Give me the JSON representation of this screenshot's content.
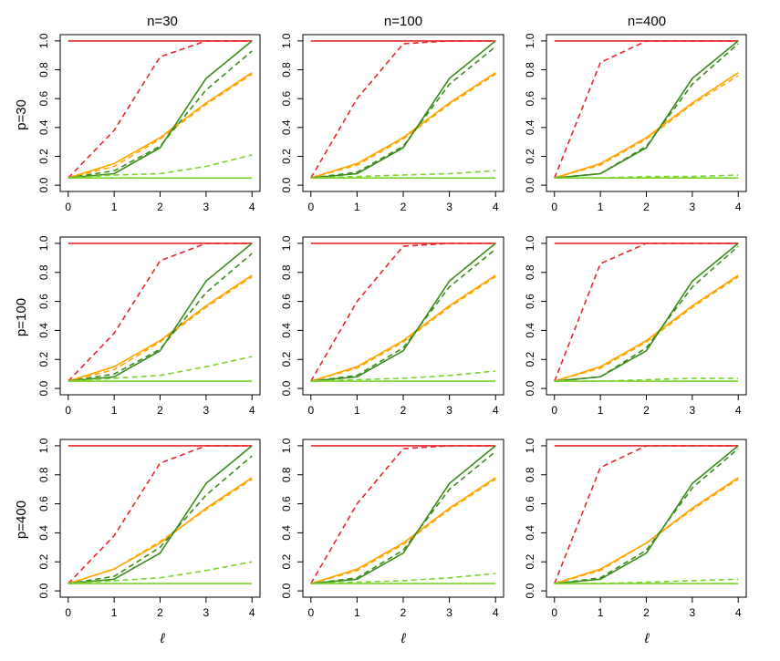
{
  "figure": {
    "col_headers": [
      "n=30",
      "n=100",
      "n=400"
    ],
    "row_headers": [
      "p=30",
      "p=100",
      "p=400"
    ],
    "xlabel": "ℓ"
  },
  "colors": {
    "red": "#e8262a",
    "orange": "#ffa500",
    "darkgreen": "#3c8c1e",
    "lightgreen": "#7cd32a"
  },
  "chart_data": [
    {
      "type": "line",
      "row_header": "p=30",
      "col_header": "n=30",
      "x": [
        0,
        1,
        2,
        3,
        4
      ],
      "xlabel": "",
      "ylabel": "",
      "xlim": [
        0,
        4
      ],
      "ylim": [
        0,
        1
      ],
      "xticks": [
        "0",
        "1",
        "2",
        "3",
        "4"
      ],
      "yticks": [
        "0.0",
        "0.2",
        "0.4",
        "0.6",
        "0.8",
        "1.0"
      ],
      "series": [
        {
          "color": "red",
          "style": "solid",
          "values": [
            1.0,
            1.0,
            1.0,
            1.0,
            1.0
          ]
        },
        {
          "color": "red",
          "style": "dashed",
          "values": [
            0.05,
            0.38,
            0.89,
            1.0,
            1.0
          ]
        },
        {
          "color": "orange",
          "style": "solid",
          "values": [
            0.05,
            0.15,
            0.33,
            0.57,
            0.78
          ]
        },
        {
          "color": "orange",
          "style": "dashed",
          "values": [
            0.05,
            0.13,
            0.32,
            0.56,
            0.77
          ]
        },
        {
          "color": "darkgreen",
          "style": "solid",
          "values": [
            0.05,
            0.08,
            0.26,
            0.74,
            1.0
          ]
        },
        {
          "color": "darkgreen",
          "style": "dashed",
          "values": [
            0.05,
            0.1,
            0.27,
            0.66,
            0.93
          ]
        },
        {
          "color": "lightgreen",
          "style": "solid",
          "values": [
            0.05,
            0.05,
            0.05,
            0.05,
            0.05
          ]
        },
        {
          "color": "lightgreen",
          "style": "dashed",
          "values": [
            0.05,
            0.07,
            0.08,
            0.13,
            0.21
          ]
        }
      ]
    },
    {
      "type": "line",
      "row_header": "p=30",
      "col_header": "n=100",
      "x": [
        0,
        1,
        2,
        3,
        4
      ],
      "xlabel": "",
      "ylabel": "",
      "xlim": [
        0,
        4
      ],
      "ylim": [
        0,
        1
      ],
      "xticks": [
        "0",
        "1",
        "2",
        "3",
        "4"
      ],
      "yticks": [
        "0.0",
        "0.2",
        "0.4",
        "0.6",
        "0.8",
        "1.0"
      ],
      "series": [
        {
          "color": "red",
          "style": "solid",
          "values": [
            1.0,
            1.0,
            1.0,
            1.0,
            1.0
          ]
        },
        {
          "color": "red",
          "style": "dashed",
          "values": [
            0.05,
            0.6,
            0.98,
            1.0,
            1.0
          ]
        },
        {
          "color": "orange",
          "style": "solid",
          "values": [
            0.05,
            0.15,
            0.33,
            0.57,
            0.78
          ]
        },
        {
          "color": "orange",
          "style": "dashed",
          "values": [
            0.05,
            0.14,
            0.32,
            0.56,
            0.77
          ]
        },
        {
          "color": "darkgreen",
          "style": "solid",
          "values": [
            0.05,
            0.08,
            0.26,
            0.74,
            1.0
          ]
        },
        {
          "color": "darkgreen",
          "style": "dashed",
          "values": [
            0.05,
            0.09,
            0.27,
            0.7,
            0.96
          ]
        },
        {
          "color": "lightgreen",
          "style": "solid",
          "values": [
            0.05,
            0.05,
            0.05,
            0.05,
            0.05
          ]
        },
        {
          "color": "lightgreen",
          "style": "dashed",
          "values": [
            0.05,
            0.06,
            0.07,
            0.08,
            0.1
          ]
        }
      ]
    },
    {
      "type": "line",
      "row_header": "p=30",
      "col_header": "n=400",
      "x": [
        0,
        1,
        2,
        3,
        4
      ],
      "xlabel": "",
      "ylabel": "",
      "xlim": [
        0,
        4
      ],
      "ylim": [
        0,
        1
      ],
      "xticks": [
        "0",
        "1",
        "2",
        "3",
        "4"
      ],
      "yticks": [
        "0.0",
        "0.2",
        "0.4",
        "0.6",
        "0.8",
        "1.0"
      ],
      "series": [
        {
          "color": "red",
          "style": "solid",
          "values": [
            1.0,
            1.0,
            1.0,
            1.0,
            1.0
          ]
        },
        {
          "color": "red",
          "style": "dashed",
          "values": [
            0.05,
            0.85,
            1.0,
            1.0,
            1.0
          ]
        },
        {
          "color": "orange",
          "style": "solid",
          "values": [
            0.05,
            0.15,
            0.33,
            0.57,
            0.78
          ]
        },
        {
          "color": "orange",
          "style": "dashed",
          "values": [
            0.05,
            0.14,
            0.32,
            0.56,
            0.76
          ]
        },
        {
          "color": "darkgreen",
          "style": "solid",
          "values": [
            0.05,
            0.08,
            0.26,
            0.74,
            1.0
          ]
        },
        {
          "color": "darkgreen",
          "style": "dashed",
          "values": [
            0.05,
            0.08,
            0.27,
            0.7,
            0.98
          ]
        },
        {
          "color": "lightgreen",
          "style": "solid",
          "values": [
            0.05,
            0.05,
            0.05,
            0.05,
            0.05
          ]
        },
        {
          "color": "lightgreen",
          "style": "dashed",
          "values": [
            0.05,
            0.05,
            0.06,
            0.06,
            0.07
          ]
        }
      ]
    },
    {
      "type": "line",
      "row_header": "p=100",
      "col_header": "n=30",
      "x": [
        0,
        1,
        2,
        3,
        4
      ],
      "xlabel": "",
      "ylabel": "",
      "xlim": [
        0,
        4
      ],
      "ylim": [
        0,
        1
      ],
      "xticks": [
        "0",
        "1",
        "2",
        "3",
        "4"
      ],
      "yticks": [
        "0.0",
        "0.2",
        "0.4",
        "0.6",
        "0.8",
        "1.0"
      ],
      "series": [
        {
          "color": "red",
          "style": "solid",
          "values": [
            1.0,
            1.0,
            1.0,
            1.0,
            1.0
          ]
        },
        {
          "color": "red",
          "style": "dashed",
          "values": [
            0.05,
            0.38,
            0.88,
            1.0,
            1.0
          ]
        },
        {
          "color": "orange",
          "style": "solid",
          "values": [
            0.05,
            0.15,
            0.33,
            0.57,
            0.78
          ]
        },
        {
          "color": "orange",
          "style": "dashed",
          "values": [
            0.05,
            0.13,
            0.32,
            0.56,
            0.77
          ]
        },
        {
          "color": "darkgreen",
          "style": "solid",
          "values": [
            0.05,
            0.08,
            0.26,
            0.74,
            1.0
          ]
        },
        {
          "color": "darkgreen",
          "style": "dashed",
          "values": [
            0.05,
            0.1,
            0.27,
            0.66,
            0.93
          ]
        },
        {
          "color": "lightgreen",
          "style": "solid",
          "values": [
            0.05,
            0.05,
            0.05,
            0.05,
            0.05
          ]
        },
        {
          "color": "lightgreen",
          "style": "dashed",
          "values": [
            0.05,
            0.07,
            0.09,
            0.15,
            0.22
          ]
        }
      ]
    },
    {
      "type": "line",
      "row_header": "p=100",
      "col_header": "n=100",
      "x": [
        0,
        1,
        2,
        3,
        4
      ],
      "xlabel": "",
      "ylabel": "",
      "xlim": [
        0,
        4
      ],
      "ylim": [
        0,
        1
      ],
      "xticks": [
        "0",
        "1",
        "2",
        "3",
        "4"
      ],
      "yticks": [
        "0.0",
        "0.2",
        "0.4",
        "0.6",
        "0.8",
        "1.0"
      ],
      "series": [
        {
          "color": "red",
          "style": "solid",
          "values": [
            1.0,
            1.0,
            1.0,
            1.0,
            1.0
          ]
        },
        {
          "color": "red",
          "style": "dashed",
          "values": [
            0.05,
            0.6,
            0.98,
            1.0,
            1.0
          ]
        },
        {
          "color": "orange",
          "style": "solid",
          "values": [
            0.05,
            0.15,
            0.33,
            0.57,
            0.78
          ]
        },
        {
          "color": "orange",
          "style": "dashed",
          "values": [
            0.05,
            0.14,
            0.32,
            0.56,
            0.77
          ]
        },
        {
          "color": "darkgreen",
          "style": "solid",
          "values": [
            0.05,
            0.08,
            0.26,
            0.74,
            1.0
          ]
        },
        {
          "color": "darkgreen",
          "style": "dashed",
          "values": [
            0.05,
            0.09,
            0.28,
            0.7,
            0.96
          ]
        },
        {
          "color": "lightgreen",
          "style": "solid",
          "values": [
            0.05,
            0.05,
            0.05,
            0.05,
            0.05
          ]
        },
        {
          "color": "lightgreen",
          "style": "dashed",
          "values": [
            0.05,
            0.06,
            0.07,
            0.09,
            0.12
          ]
        }
      ]
    },
    {
      "type": "line",
      "row_header": "p=100",
      "col_header": "n=400",
      "x": [
        0,
        1,
        2,
        3,
        4
      ],
      "xlabel": "",
      "ylabel": "",
      "xlim": [
        0,
        4
      ],
      "ylim": [
        0,
        1
      ],
      "xticks": [
        "0",
        "1",
        "2",
        "3",
        "4"
      ],
      "yticks": [
        "0.0",
        "0.2",
        "0.4",
        "0.6",
        "0.8",
        "1.0"
      ],
      "series": [
        {
          "color": "red",
          "style": "solid",
          "values": [
            1.0,
            1.0,
            1.0,
            1.0,
            1.0
          ]
        },
        {
          "color": "red",
          "style": "dashed",
          "values": [
            0.05,
            0.86,
            1.0,
            1.0,
            1.0
          ]
        },
        {
          "color": "orange",
          "style": "solid",
          "values": [
            0.05,
            0.15,
            0.33,
            0.57,
            0.78
          ]
        },
        {
          "color": "orange",
          "style": "dashed",
          "values": [
            0.05,
            0.14,
            0.32,
            0.56,
            0.77
          ]
        },
        {
          "color": "darkgreen",
          "style": "solid",
          "values": [
            0.05,
            0.08,
            0.26,
            0.74,
            1.0
          ]
        },
        {
          "color": "darkgreen",
          "style": "dashed",
          "values": [
            0.05,
            0.08,
            0.28,
            0.7,
            0.98
          ]
        },
        {
          "color": "lightgreen",
          "style": "solid",
          "values": [
            0.05,
            0.05,
            0.05,
            0.05,
            0.05
          ]
        },
        {
          "color": "lightgreen",
          "style": "dashed",
          "values": [
            0.05,
            0.05,
            0.06,
            0.07,
            0.07
          ]
        }
      ]
    },
    {
      "type": "line",
      "row_header": "p=400",
      "col_header": "n=30",
      "x": [
        0,
        1,
        2,
        3,
        4
      ],
      "xlabel": "ℓ",
      "ylabel": "",
      "xlim": [
        0,
        4
      ],
      "ylim": [
        0,
        1
      ],
      "xticks": [
        "0",
        "1",
        "2",
        "3",
        "4"
      ],
      "yticks": [
        "0.0",
        "0.2",
        "0.4",
        "0.6",
        "0.8",
        "1.0"
      ],
      "series": [
        {
          "color": "red",
          "style": "solid",
          "values": [
            1.0,
            1.0,
            1.0,
            1.0,
            1.0
          ]
        },
        {
          "color": "red",
          "style": "dashed",
          "values": [
            0.05,
            0.38,
            0.88,
            1.0,
            1.0
          ]
        },
        {
          "color": "orange",
          "style": "solid",
          "values": [
            0.05,
            0.15,
            0.33,
            0.57,
            0.78
          ]
        },
        {
          "color": "orange",
          "style": "dashed",
          "values": [
            0.05,
            0.15,
            0.34,
            0.56,
            0.77
          ]
        },
        {
          "color": "darkgreen",
          "style": "solid",
          "values": [
            0.05,
            0.08,
            0.26,
            0.74,
            1.0
          ]
        },
        {
          "color": "darkgreen",
          "style": "dashed",
          "values": [
            0.05,
            0.1,
            0.3,
            0.66,
            0.93
          ]
        },
        {
          "color": "lightgreen",
          "style": "solid",
          "values": [
            0.05,
            0.05,
            0.05,
            0.05,
            0.05
          ]
        },
        {
          "color": "lightgreen",
          "style": "dashed",
          "values": [
            0.05,
            0.07,
            0.09,
            0.14,
            0.2
          ]
        }
      ]
    },
    {
      "type": "line",
      "row_header": "p=400",
      "col_header": "n=100",
      "x": [
        0,
        1,
        2,
        3,
        4
      ],
      "xlabel": "ℓ",
      "ylabel": "",
      "xlim": [
        0,
        4
      ],
      "ylim": [
        0,
        1
      ],
      "xticks": [
        "0",
        "1",
        "2",
        "3",
        "4"
      ],
      "yticks": [
        "0.0",
        "0.2",
        "0.4",
        "0.6",
        "0.8",
        "1.0"
      ],
      "series": [
        {
          "color": "red",
          "style": "solid",
          "values": [
            1.0,
            1.0,
            1.0,
            1.0,
            1.0
          ]
        },
        {
          "color": "red",
          "style": "dashed",
          "values": [
            0.05,
            0.6,
            0.98,
            1.0,
            1.0
          ]
        },
        {
          "color": "orange",
          "style": "solid",
          "values": [
            0.05,
            0.15,
            0.33,
            0.57,
            0.78
          ]
        },
        {
          "color": "orange",
          "style": "dashed",
          "values": [
            0.05,
            0.14,
            0.32,
            0.56,
            0.77
          ]
        },
        {
          "color": "darkgreen",
          "style": "solid",
          "values": [
            0.05,
            0.08,
            0.26,
            0.74,
            1.0
          ]
        },
        {
          "color": "darkgreen",
          "style": "dashed",
          "values": [
            0.05,
            0.09,
            0.28,
            0.7,
            0.96
          ]
        },
        {
          "color": "lightgreen",
          "style": "solid",
          "values": [
            0.05,
            0.05,
            0.05,
            0.05,
            0.05
          ]
        },
        {
          "color": "lightgreen",
          "style": "dashed",
          "values": [
            0.05,
            0.06,
            0.07,
            0.09,
            0.12
          ]
        }
      ]
    },
    {
      "type": "line",
      "row_header": "p=400",
      "col_header": "n=400",
      "x": [
        0,
        1,
        2,
        3,
        4
      ],
      "xlabel": "ℓ",
      "ylabel": "",
      "xlim": [
        0,
        4
      ],
      "ylim": [
        0,
        1
      ],
      "xticks": [
        "0",
        "1",
        "2",
        "3",
        "4"
      ],
      "yticks": [
        "0.0",
        "0.2",
        "0.4",
        "0.6",
        "0.8",
        "1.0"
      ],
      "series": [
        {
          "color": "red",
          "style": "solid",
          "values": [
            1.0,
            1.0,
            1.0,
            1.0,
            1.0
          ]
        },
        {
          "color": "red",
          "style": "dashed",
          "values": [
            0.05,
            0.85,
            1.0,
            1.0,
            1.0
          ]
        },
        {
          "color": "orange",
          "style": "solid",
          "values": [
            0.05,
            0.15,
            0.33,
            0.57,
            0.78
          ]
        },
        {
          "color": "orange",
          "style": "dashed",
          "values": [
            0.05,
            0.14,
            0.33,
            0.56,
            0.77
          ]
        },
        {
          "color": "darkgreen",
          "style": "solid",
          "values": [
            0.05,
            0.08,
            0.26,
            0.74,
            1.0
          ]
        },
        {
          "color": "darkgreen",
          "style": "dashed",
          "values": [
            0.05,
            0.09,
            0.28,
            0.71,
            0.98
          ]
        },
        {
          "color": "lightgreen",
          "style": "solid",
          "values": [
            0.05,
            0.05,
            0.05,
            0.05,
            0.05
          ]
        },
        {
          "color": "lightgreen",
          "style": "dashed",
          "values": [
            0.05,
            0.05,
            0.06,
            0.07,
            0.08
          ]
        }
      ]
    }
  ]
}
